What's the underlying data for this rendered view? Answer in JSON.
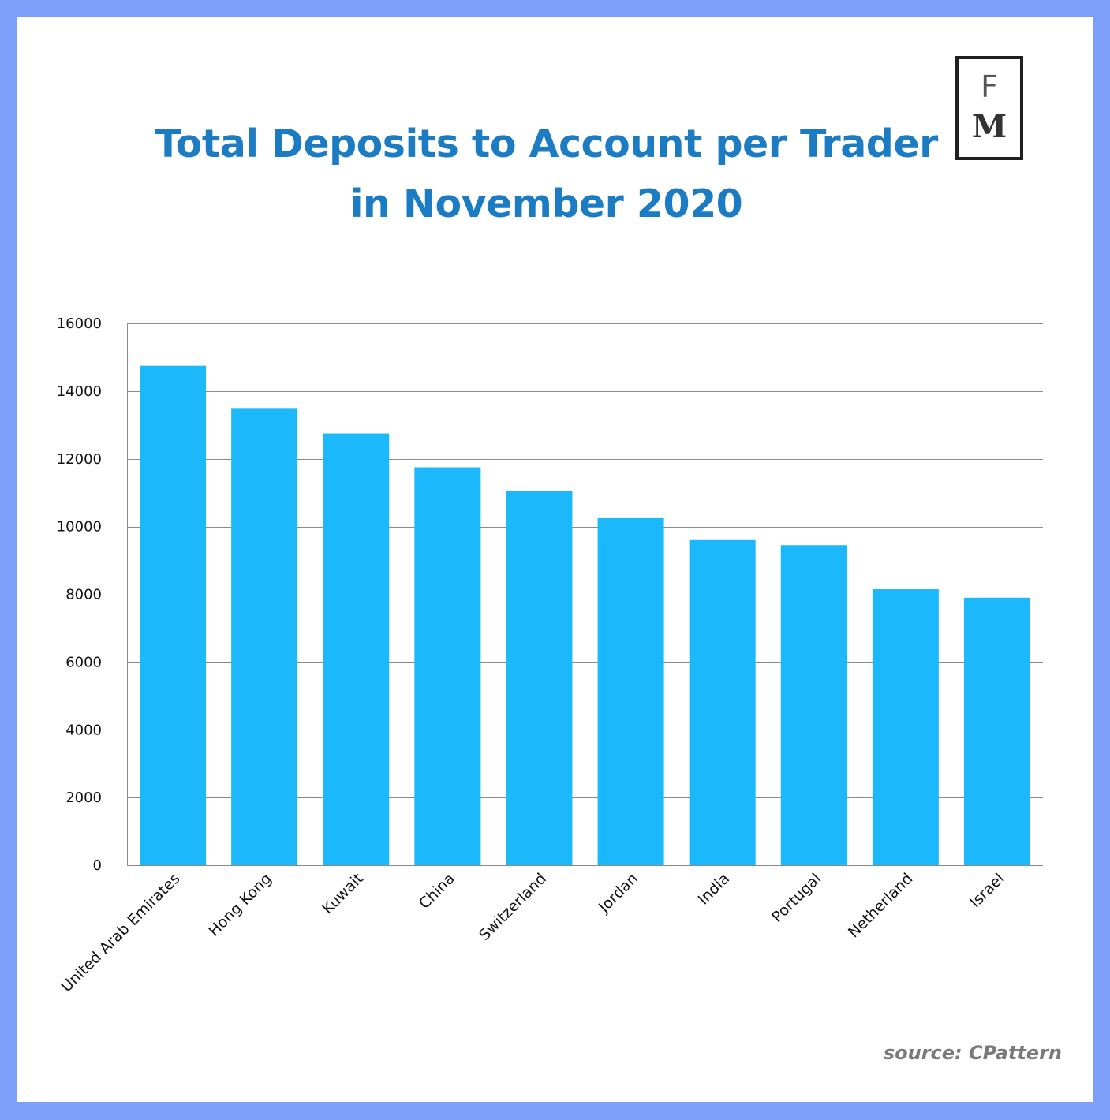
{
  "logo": {
    "top_letter": "F",
    "bottom_letter": "M"
  },
  "title_lines": [
    "Total Deposits to Account per Trader",
    "in November 2020"
  ],
  "source": "source: CPattern",
  "colors": {
    "bar": "#1bb8fb",
    "title": "#1b7cc4",
    "frame": "#7d9ffa"
  },
  "chart_data": {
    "type": "bar",
    "title": "Total Deposits to Account per Trader in November 2020",
    "xlabel": "",
    "ylabel": "",
    "categories": [
      "United Arab Emirates",
      "Hong Kong",
      "Kuwait",
      "China",
      "Switzerland",
      "Jordan",
      "India",
      "Portugal",
      "Netherland",
      "Israel"
    ],
    "values": [
      14750,
      13500,
      12750,
      11750,
      11050,
      10250,
      9600,
      9450,
      8150,
      7900
    ],
    "ylim": [
      0,
      16000
    ],
    "yticks": [
      0,
      2000,
      4000,
      6000,
      8000,
      10000,
      12000,
      14000,
      16000
    ],
    "grid": true,
    "legend": "none"
  }
}
